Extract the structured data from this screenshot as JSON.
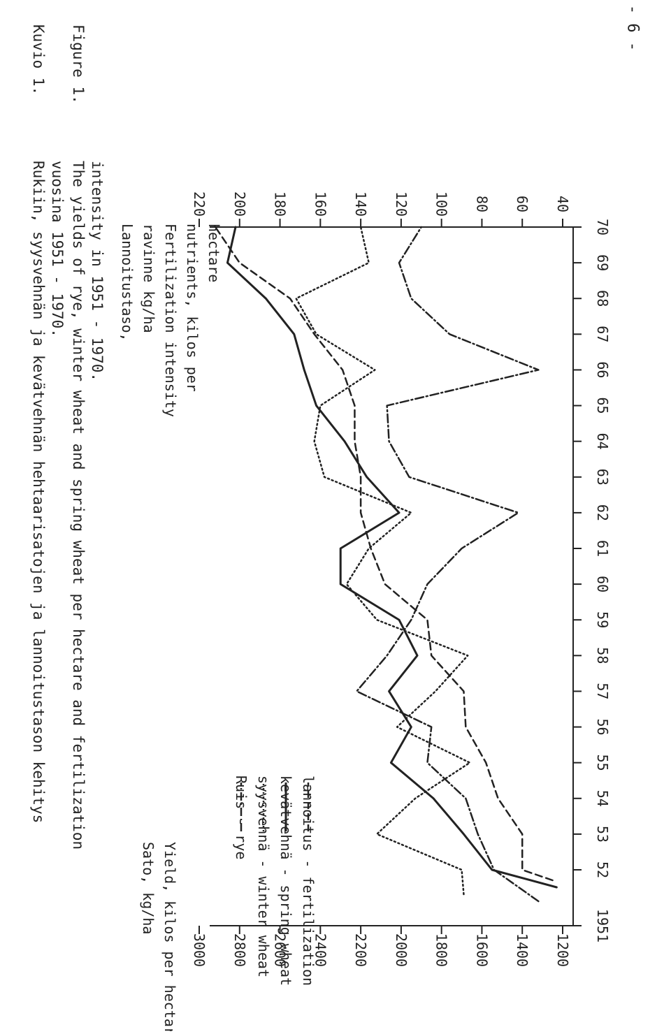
{
  "page_number": "- 6 -",
  "caption": {
    "fi_label": "Kuvio 1.",
    "fi_line1": "Rukiin, syysvehnän ja kevätvehnän hehtaarisatojen ja lannoitustason kehitys",
    "fi_line2": "vuosina 1951 - 1970.",
    "en_label": "Figure 1.",
    "en_line1": "The yields of rye, winter wheat and spring wheat per hectare and fertilization",
    "en_line2": "intensity in 1951 - 1970."
  },
  "legend": {
    "items": [
      {
        "label": "Ruis - rye",
        "style": "dashdot"
      },
      {
        "label": "syysvehnä - winter wheat",
        "style": "dotted"
      },
      {
        "label": "kevätvehnä - spring wheat",
        "style": "solid"
      },
      {
        "label": "lannoitus - fertilization",
        "style": "dashed"
      }
    ]
  },
  "chart_data": {
    "type": "line",
    "x": [
      1951,
      1952,
      1953,
      1954,
      1955,
      1956,
      1957,
      1958,
      1959,
      1960,
      1961,
      1962,
      1963,
      1964,
      1965,
      1966,
      1967,
      1968,
      1969,
      1970
    ],
    "x_tick_labels": [
      "1951",
      "52",
      "53",
      "54",
      "55",
      "56",
      "57",
      "58",
      "59",
      "60",
      "61",
      "62",
      "63",
      "64",
      "65",
      "66",
      "67",
      "68",
      "69",
      "70"
    ],
    "ylabel_lines": [
      "Sato, kg/ha",
      "Yield, kilos per hectare"
    ],
    "ylim": [
      1200,
      3000
    ],
    "y_ticks": [
      1200,
      1400,
      1600,
      1800,
      2000,
      2200,
      2400,
      2600,
      2800,
      3000
    ],
    "y2label_lines": [
      "Lannoitustaso,",
      "ravinne kg/ha",
      "Fertilization intensity",
      "nutrients, kilos per",
      "hectare"
    ],
    "y2lim": [
      40,
      220
    ],
    "y2_ticks": [
      40,
      60,
      80,
      100,
      120,
      140,
      160,
      180,
      200,
      220
    ],
    "series": [
      {
        "name": "Ruis - rye",
        "axis": "left",
        "style": "dashdot",
        "values": [
          1320,
          1540,
          1620,
          1680,
          1870,
          1850,
          2220,
          2070,
          1950,
          1870,
          1700,
          1420,
          1960,
          2060,
          2070,
          1320,
          1760,
          1950,
          2010,
          1900
        ]
      },
      {
        "name": "syysvehnä - winter wheat",
        "axis": "left",
        "style": "dotted",
        "values": [
          1690,
          1700,
          2120,
          1930,
          1660,
          2020,
          1830,
          1670,
          2120,
          2270,
          2160,
          1950,
          2380,
          2430,
          2400,
          2130,
          2420,
          2520,
          2160,
          2200
        ]
      },
      {
        "name": "kevätvehnä - spring wheat",
        "axis": "left",
        "style": "solid",
        "values": [
          1230,
          1550,
          1690,
          1840,
          2050,
          1950,
          2060,
          1920,
          2010,
          2300,
          2300,
          2010,
          2170,
          2280,
          2420,
          2480,
          2530,
          2670,
          2860,
          2820
        ]
      },
      {
        "name": "lannoitus - fertilization",
        "axis": "right",
        "style": "dashed",
        "values": [
          45,
          60,
          60,
          72,
          78,
          88,
          89,
          105,
          107,
          128,
          135,
          140,
          140,
          143,
          143,
          149,
          163,
          175,
          200,
          212
        ]
      }
    ]
  }
}
